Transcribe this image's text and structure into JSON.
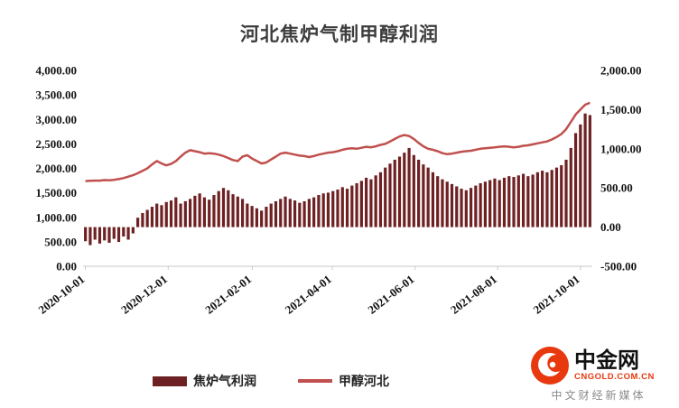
{
  "title": "河北焦炉气制甲醇利润",
  "legend": {
    "bars_label": "焦炉气利润",
    "line_label": "甲醇河北"
  },
  "colors": {
    "bars": "#6e2123",
    "line": "#c0504d",
    "axis": "#c9c9c9",
    "logo_red": "#e8380d"
  },
  "brand": {
    "name": "中金网",
    "domain": "CNGOLD.COM.CN",
    "tagline": "中文财经新媒体"
  },
  "chart_data": {
    "type": "bar+line",
    "title": "河北焦炉气制甲醇利润",
    "x_tick_labels": [
      "2020-10-01",
      "2020-12-01",
      "2021-02-01",
      "2021-04-01",
      "2021-06-01",
      "2021-08-01",
      "2021-10-01"
    ],
    "x_tick_days": [
      0,
      61,
      123,
      182,
      243,
      304,
      365
    ],
    "total_days": 372,
    "left_axis": {
      "min": 0,
      "max": 4000,
      "ticks": [
        "4,000.00",
        "3,500.00",
        "3,000.00",
        "2,500.00",
        "2,000.00",
        "1,500.00",
        "1,000.00",
        "500.00",
        "0.00"
      ]
    },
    "right_axis": {
      "min": -500,
      "max": 2000,
      "ticks": [
        "2,000.00",
        "1,500.00",
        "1,000.00",
        "500.00",
        "0.00",
        "-500.00"
      ]
    },
    "grid": false,
    "legend_position": "bottom",
    "series": [
      {
        "name": "焦炉气利润",
        "type": "bar",
        "axis": "right",
        "values": [
          -180,
          -230,
          -160,
          -210,
          -170,
          -200,
          -150,
          -190,
          -120,
          -160,
          -80,
          120,
          180,
          220,
          260,
          300,
          280,
          320,
          340,
          380,
          300,
          330,
          360,
          400,
          430,
          380,
          350,
          410,
          460,
          500,
          470,
          420,
          390,
          360,
          300,
          270,
          240,
          210,
          260,
          300,
          330,
          360,
          390,
          360,
          340,
          310,
          330,
          360,
          380,
          410,
          430,
          440,
          460,
          480,
          510,
          490,
          530,
          560,
          590,
          630,
          610,
          660,
          700,
          760,
          810,
          860,
          900,
          950,
          1010,
          920,
          860,
          800,
          760,
          700,
          650,
          610,
          580,
          550,
          520,
          490,
          470,
          500,
          530,
          560,
          580,
          600,
          620,
          600,
          630,
          650,
          640,
          660,
          680,
          650,
          670,
          700,
          720,
          700,
          730,
          760,
          790,
          860,
          1010,
          1200,
          1310,
          1450,
          1430
        ]
      },
      {
        "name": "甲醇河北",
        "type": "line",
        "axis": "left",
        "values": [
          1740,
          1745,
          1750,
          1750,
          1760,
          1755,
          1765,
          1780,
          1800,
          1830,
          1860,
          1900,
          1950,
          2000,
          2080,
          2150,
          2100,
          2060,
          2090,
          2150,
          2240,
          2320,
          2370,
          2350,
          2330,
          2300,
          2310,
          2300,
          2280,
          2250,
          2210,
          2170,
          2150,
          2240,
          2270,
          2200,
          2150,
          2100,
          2120,
          2180,
          2240,
          2300,
          2320,
          2300,
          2280,
          2260,
          2250,
          2230,
          2250,
          2280,
          2300,
          2320,
          2330,
          2350,
          2380,
          2400,
          2410,
          2400,
          2420,
          2440,
          2430,
          2450,
          2480,
          2500,
          2550,
          2600,
          2650,
          2680,
          2660,
          2600,
          2520,
          2450,
          2400,
          2380,
          2350,
          2310,
          2290,
          2300,
          2320,
          2340,
          2350,
          2360,
          2380,
          2400,
          2410,
          2420,
          2430,
          2440,
          2450,
          2440,
          2430,
          2440,
          2460,
          2470,
          2490,
          2510,
          2530,
          2550,
          2590,
          2640,
          2700,
          2800,
          2950,
          3100,
          3200,
          3300,
          3340
        ]
      }
    ]
  }
}
